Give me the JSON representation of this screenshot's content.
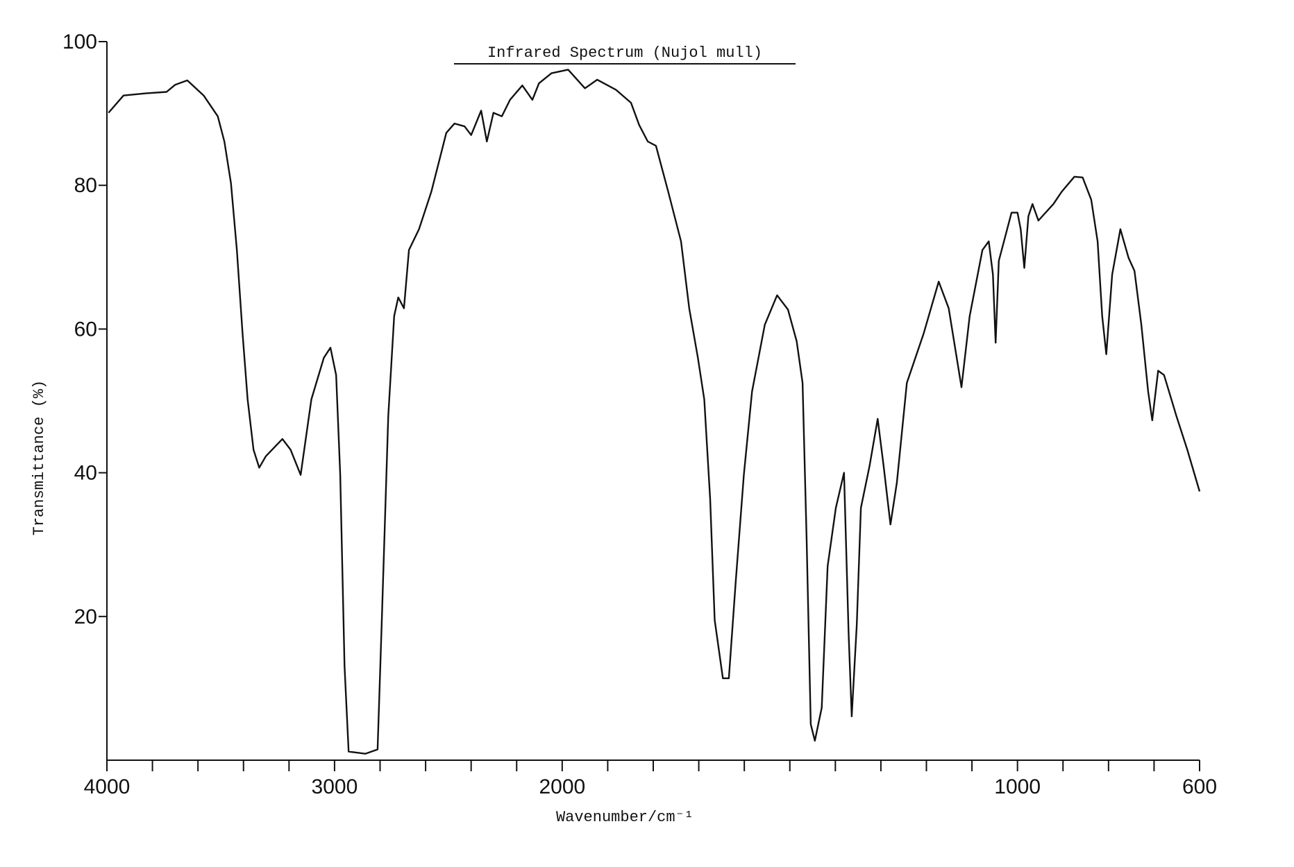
{
  "chart_data": {
    "type": "line",
    "title": "Infrared Spectrum (Nujol mull)",
    "x_label": "Wavenumber/cm⁻¹",
    "y_label": "Transmittance (%)",
    "xlim": [
      4000,
      600
    ],
    "ylim": [
      0,
      100
    ],
    "x_scale_break": 2000,
    "x_scale_expansion_below_break": 2,
    "xticks": [
      4000,
      3000,
      2000,
      1000,
      600
    ],
    "xminorticks": [
      3800,
      3600,
      3400,
      3200,
      2800,
      2600,
      2400,
      2200,
      1900,
      1800,
      1700,
      1600,
      1500,
      1400,
      1300,
      1200,
      1100,
      900,
      800,
      700
    ],
    "yticks": [
      20,
      40,
      60,
      80,
      100
    ],
    "series": [
      {
        "color": "#111111",
        "x": [
          3993,
          3927,
          3829,
          3738,
          3700,
          3647,
          3575,
          3513,
          3484,
          3455,
          3429,
          3404,
          3382,
          3356,
          3331,
          3302,
          3229,
          3193,
          3149,
          3102,
          3047,
          3018,
          2993,
          2975,
          2956,
          2938,
          2865,
          2811,
          2793,
          2764,
          2738,
          2720,
          2695,
          2673,
          2629,
          2575,
          2509,
          2473,
          2429,
          2400,
          2356,
          2331,
          2302,
          2265,
          2229,
          2175,
          2131,
          2102,
          2047,
          1987,
          1950,
          1923,
          1882,
          1849,
          1831,
          1812,
          1794,
          1767,
          1739,
          1721,
          1702,
          1688,
          1675,
          1665,
          1647,
          1634,
          1619,
          1601,
          1583,
          1555,
          1528,
          1504,
          1485,
          1472,
          1463,
          1454,
          1445,
          1430,
          1417,
          1399,
          1381,
          1371,
          1364,
          1353,
          1344,
          1325,
          1307,
          1294,
          1279,
          1265,
          1243,
          1206,
          1173,
          1151,
          1123,
          1105,
          1077,
          1063,
          1054,
          1048,
          1041,
          1013,
          1000,
          993,
          985,
          976,
          967,
          954,
          921,
          903,
          875,
          857,
          838,
          824,
          814,
          805,
          792,
          774,
          756,
          743,
          728,
          713,
          704,
          691,
          678,
          651,
          627,
          600
        ],
        "values": [
          90.1,
          92.5,
          92.8,
          93.0,
          94.0,
          94.6,
          92.5,
          89.6,
          86.1,
          80.3,
          71.0,
          59.4,
          50.2,
          43.2,
          40.7,
          42.3,
          44.7,
          43.2,
          39.7,
          50.2,
          56.0,
          57.4,
          53.6,
          39.7,
          13.1,
          1.2,
          0.9,
          1.5,
          18.9,
          47.9,
          61.8,
          64.4,
          62.9,
          71.0,
          73.9,
          79.1,
          87.3,
          88.6,
          88.2,
          87.0,
          90.4,
          86.1,
          90.1,
          89.6,
          91.9,
          93.9,
          91.9,
          94.2,
          95.6,
          96.1,
          93.5,
          94.7,
          93.3,
          91.5,
          88.4,
          86.1,
          85.5,
          79.1,
          72.2,
          62.9,
          56.0,
          50.2,
          36.3,
          19.5,
          11.4,
          11.4,
          24.7,
          39.7,
          51.3,
          60.6,
          64.7,
          62.7,
          58.3,
          52.5,
          30.5,
          5.0,
          2.7,
          7.3,
          27.0,
          35.1,
          40.0,
          17.7,
          6.1,
          18.9,
          35.1,
          40.9,
          47.5,
          40.9,
          32.8,
          38.6,
          52.5,
          59.4,
          66.6,
          62.9,
          51.9,
          61.8,
          71.0,
          72.2,
          67.6,
          58.1,
          69.5,
          76.2,
          76.2,
          73.9,
          68.5,
          75.7,
          77.4,
          75.1,
          77.4,
          79.1,
          81.2,
          81.1,
          78.0,
          72.2,
          61.8,
          56.5,
          67.6,
          73.9,
          69.9,
          68.1,
          60.6,
          51.3,
          47.3,
          54.2,
          53.6,
          47.9,
          43.2,
          37.4
        ]
      }
    ]
  }
}
